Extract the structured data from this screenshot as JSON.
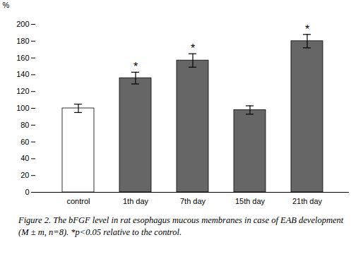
{
  "chart_data": {
    "type": "bar",
    "categories": [
      "control",
      "1th day",
      "7th day",
      "15th day",
      "21th day"
    ],
    "values": [
      100,
      136,
      157,
      98,
      180
    ],
    "errors": [
      5,
      7,
      8,
      5,
      8
    ],
    "colors": [
      "white",
      "#666666",
      "#666666",
      "#666666",
      "#666666"
    ],
    "ylabel": "%",
    "ylim": [
      0,
      200
    ],
    "yticks": [
      0,
      20,
      40,
      60,
      80,
      100,
      120,
      140,
      160,
      180,
      200
    ],
    "annotations": [
      {
        "category": "1th day",
        "text": "*"
      },
      {
        "category": "7th day",
        "text": "*"
      },
      {
        "category": "21th day",
        "text": "*"
      }
    ],
    "caption": "Figure 2. The bFGF level in rat esophagus mucous membranes in case of EAB development (M ± m, n=8). *p<0.05 relative to the control."
  }
}
